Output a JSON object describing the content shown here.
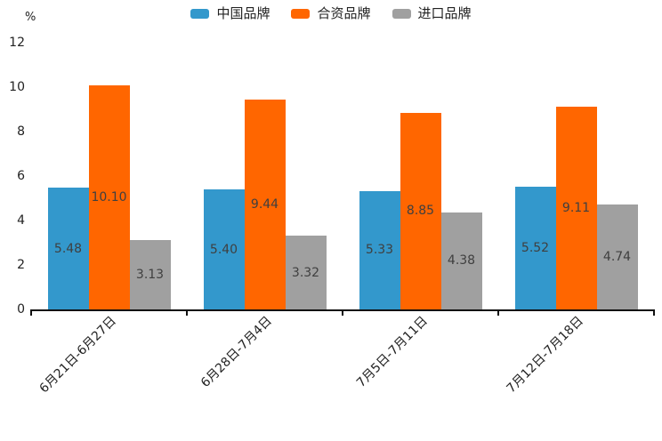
{
  "page": {
    "background": "#ffffff"
  },
  "chart_data": {
    "type": "bar",
    "title": "",
    "unit_label": "%",
    "categories": [
      "6月21日-6月27日",
      "6月28日-7月4日",
      "7月5日-7月11日",
      "7月12日-7月18日"
    ],
    "series": [
      {
        "name": "中国品牌",
        "key": "china-brand",
        "color": "#3398cc",
        "values": [
          5.48,
          5.4,
          5.33,
          5.52
        ]
      },
      {
        "name": "合资品牌",
        "key": "joint-venture-brand",
        "color": "#ff6600",
        "values": [
          10.1,
          9.44,
          8.85,
          9.11
        ]
      },
      {
        "name": "进口品牌",
        "key": "import-brand",
        "color": "#a0a0a0",
        "values": [
          3.13,
          3.32,
          4.38,
          4.74
        ]
      }
    ],
    "ylim": [
      0,
      12
    ],
    "yticks": [
      0,
      2,
      4,
      6,
      8,
      10,
      12
    ],
    "grid": false,
    "legend_position": "top-center",
    "value_labels": "inside-middle",
    "value_label_decimals": 2,
    "axis_color": "#111111",
    "text_color": "#222222",
    "value_label_color": "#3f3f3f"
  }
}
